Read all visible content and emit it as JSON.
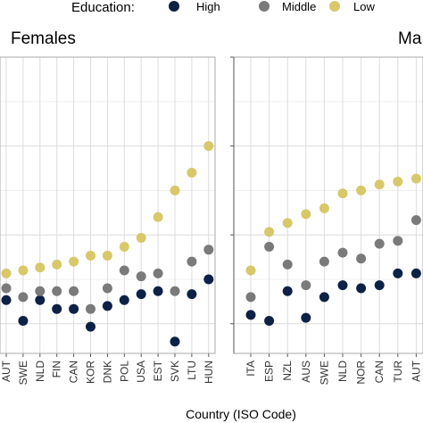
{
  "legend": {
    "title": "Education:",
    "items": [
      {
        "label": "High",
        "color": "#0d2147"
      },
      {
        "label": "Middle",
        "color": "#7a7a7a"
      },
      {
        "label": "Low",
        "color": "#d8c86a"
      }
    ]
  },
  "chart_data": [
    {
      "type": "scatter",
      "title": "Females",
      "xlabel": "Country (ISO Code)",
      "categories": [
        "AUT",
        "SWE",
        "NLD",
        "FIN",
        "CAN",
        "KOR",
        "DNK",
        "POL",
        "USA",
        "EST",
        "SVK",
        "LTU",
        "HUN"
      ],
      "ylim": [
        0,
        1
      ],
      "grid": true,
      "series": [
        {
          "name": "High",
          "values": [
            0.18,
            0.11,
            0.18,
            0.15,
            0.15,
            0.09,
            0.16,
            0.18,
            0.2,
            0.21,
            0.04,
            0.2,
            0.25
          ]
        },
        {
          "name": "Middle",
          "values": [
            0.22,
            0.19,
            0.21,
            0.21,
            0.21,
            0.15,
            0.22,
            0.28,
            0.26,
            0.27,
            0.21,
            0.31,
            0.35
          ]
        },
        {
          "name": "Low",
          "values": [
            0.27,
            0.28,
            0.29,
            0.3,
            0.31,
            0.33,
            0.33,
            0.36,
            0.39,
            0.46,
            0.55,
            0.61,
            0.7
          ]
        }
      ]
    },
    {
      "type": "scatter",
      "title": "Ma",
      "xlabel": "Country (ISO Code)",
      "categories": [
        "ITA",
        "ESP",
        "NZL",
        "AUS",
        "SWE",
        "NLD",
        "NOR",
        "CAN",
        "TUR",
        "AUT"
      ],
      "ylim": [
        0,
        1
      ],
      "grid": true,
      "series": [
        {
          "name": "High",
          "values": [
            0.13,
            0.11,
            0.21,
            0.12,
            0.19,
            0.23,
            0.22,
            0.23,
            0.27,
            0.27
          ]
        },
        {
          "name": "Middle",
          "values": [
            0.19,
            0.36,
            0.3,
            0.23,
            0.31,
            0.34,
            0.32,
            0.37,
            0.38,
            0.45
          ]
        },
        {
          "name": "Low",
          "values": [
            0.28,
            0.41,
            0.44,
            0.47,
            0.49,
            0.54,
            0.55,
            0.57,
            0.58,
            0.59
          ]
        }
      ]
    }
  ]
}
